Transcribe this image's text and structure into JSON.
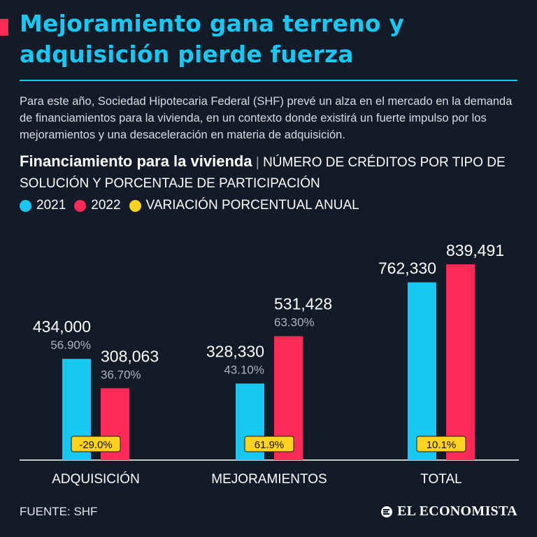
{
  "header": {
    "title_line1": "Mejoramiento gana terreno y",
    "title_line2": "adquisición pierde fuerza",
    "intro": "Para este año, Sociedad Hipotecaria Federal (SHF) prevé un alza en el mercado en la demanda de financiamientos para la vivienda, en un contexto donde existirá un fuerte impulso por los mejoramientos y una desaceleración en materia de adquisición."
  },
  "subtitle": {
    "strong": "Financiamiento para la vivienda",
    "separator": "|",
    "rest": "NÚMERO DE CRÉDITOS POR TIPO DE SOLUCIÓN Y PORCENTAJE DE PARTICIPACIÓN"
  },
  "legend": [
    {
      "label": "2021",
      "color": "#18c8f2"
    },
    {
      "label": "2022",
      "color": "#ff2a55"
    },
    {
      "label": "VARIACIÓN PORCENTUAL ANUAL",
      "color": "#ffd21f"
    }
  ],
  "chart_data": {
    "type": "bar",
    "title": "Financiamiento para la vivienda",
    "categories": [
      "ADQUISICIÓN",
      "MEJORAMIENTOS",
      "TOTAL"
    ],
    "series": [
      {
        "name": "2021",
        "color": "#18c8f2",
        "values": [
          434000,
          328330,
          762330
        ],
        "value_labels": [
          "434,000",
          "328,330",
          "762,330"
        ],
        "share_labels": [
          "56.90%",
          "43.10%",
          ""
        ]
      },
      {
        "name": "2022",
        "color": "#ff2a55",
        "values": [
          308063,
          531428,
          839491
        ],
        "value_labels": [
          "308,063",
          "531,428",
          "839,491"
        ],
        "share_labels": [
          "36.70%",
          "63.30%",
          ""
        ]
      }
    ],
    "annual_change": {
      "name": "VARIACIÓN PORCENTUAL ANUAL",
      "color": "#ffd21f",
      "labels": [
        "-29.0%",
        "61.9%",
        "10.1%"
      ]
    },
    "xlabel": "",
    "ylabel": "",
    "ylim": [
      0,
      900000
    ],
    "grid": false
  },
  "footer": {
    "source": "FUENTE: SHF",
    "brand": "EL ECONOMISTA"
  }
}
